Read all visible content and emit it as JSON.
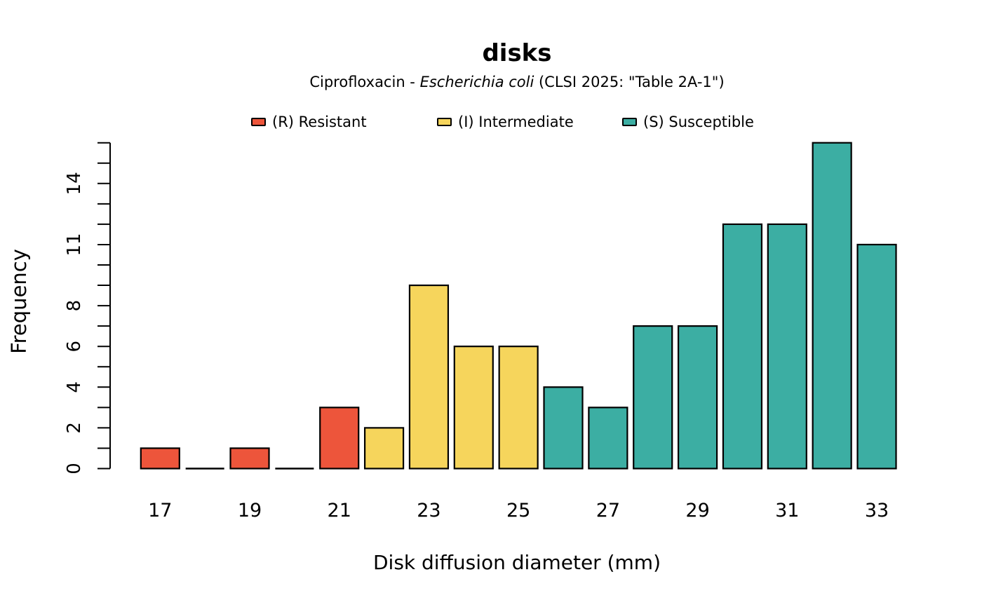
{
  "figure": {
    "subtitle": {
      "prefix": "Ciprofloxacin - ",
      "italic": "Escherichia coli",
      "suffix": " (CLSI 2025: \"Table 2A-1\")"
    },
    "background_color": "#FFFFFF"
  },
  "chart_data": {
    "type": "bar",
    "title": "disks",
    "subtitle": "Ciprofloxacin - Escherichia coli (CLSI 2025: \"Table 2A-1\")",
    "xlabel": "Disk diffusion diameter (mm)",
    "ylabel": "Frequency",
    "x": [
      17,
      18,
      19,
      20,
      21,
      22,
      23,
      24,
      25,
      26,
      27,
      28,
      29,
      30,
      31,
      32,
      33
    ],
    "values": [
      1,
      0,
      1,
      0,
      3,
      2,
      9,
      6,
      6,
      4,
      3,
      7,
      7,
      12,
      12,
      16,
      11
    ],
    "bar_categories": [
      "R",
      "R",
      "R",
      "R",
      "R",
      "I",
      "I",
      "I",
      "I",
      "S",
      "S",
      "S",
      "S",
      "S",
      "S",
      "S",
      "S"
    ],
    "category_colors": {
      "R": "#ED553B",
      "I": "#F6D55C",
      "S": "#3CAEA3"
    },
    "bar_border_color": "#000000",
    "x_tick_labels": [
      "17",
      "19",
      "21",
      "23",
      "25",
      "27",
      "29",
      "31",
      "33"
    ],
    "y_ticks": {
      "min": 0,
      "max": 16,
      "step": 1
    },
    "y_tick_labels": [
      "0",
      "2",
      "4",
      "6",
      "8",
      "11",
      "14"
    ],
    "y_tick_label_values": [
      0,
      2,
      4,
      6,
      8,
      11,
      14
    ],
    "ylim": [
      0,
      16
    ],
    "grid": false,
    "legend_position": "top",
    "legend": [
      {
        "id": "R",
        "label": "(R) Resistant",
        "color": "#ED553B"
      },
      {
        "id": "I",
        "label": "(I) Intermediate",
        "color": "#F6D55C"
      },
      {
        "id": "S",
        "label": "(S) Susceptible",
        "color": "#3CAEA3"
      }
    ]
  }
}
